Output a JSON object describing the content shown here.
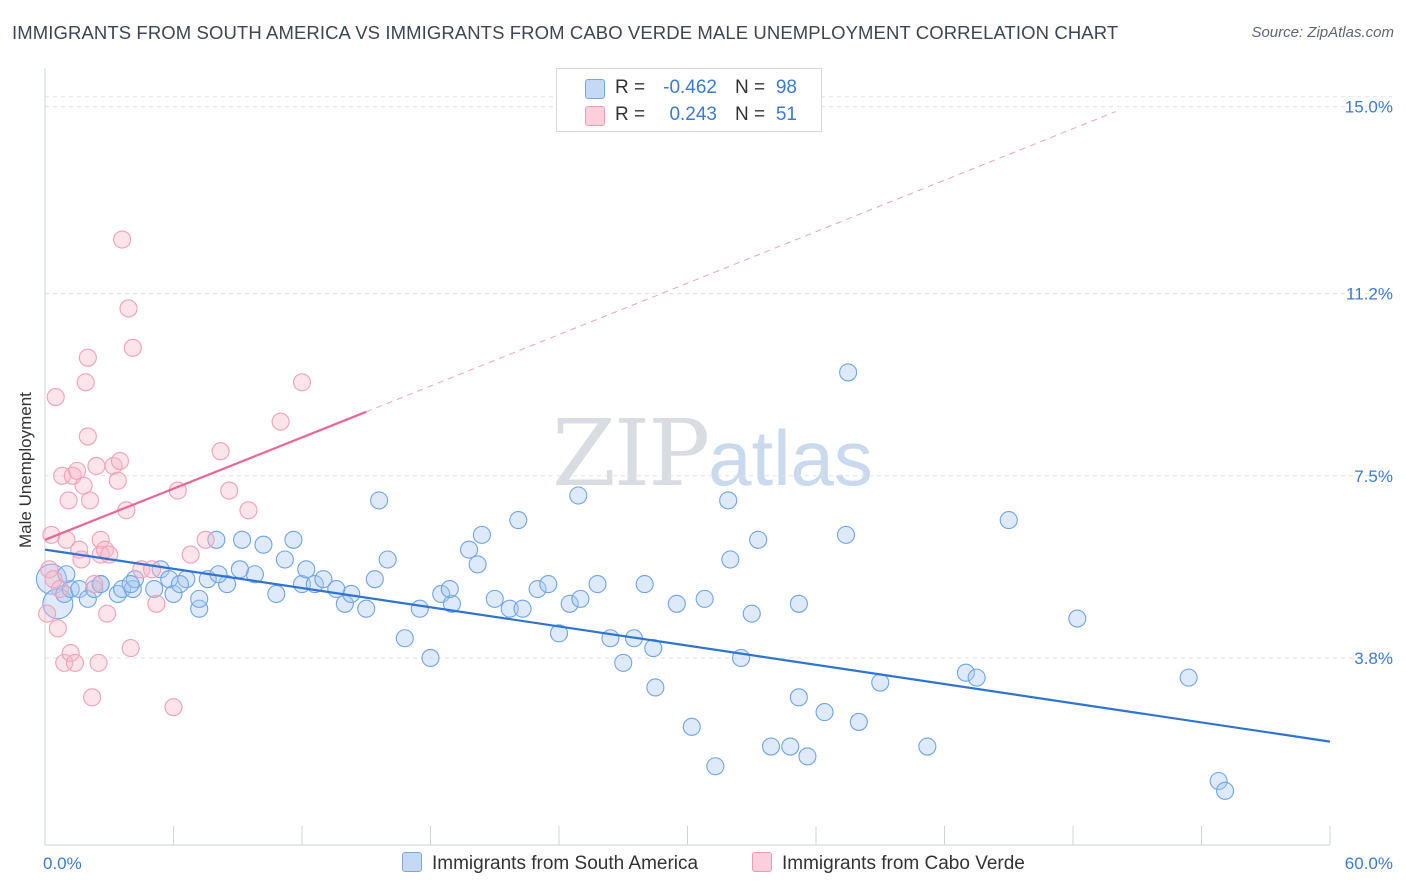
{
  "title": "IMMIGRANTS FROM SOUTH AMERICA VS IMMIGRANTS FROM CABO VERDE MALE UNEMPLOYMENT CORRELATION CHART",
  "source": "Source: ZipAtlas.com",
  "watermark": {
    "zip": "ZIP",
    "atlas": "atlas"
  },
  "legend": {
    "r_label": "R =",
    "n_label": "N =",
    "rows": [
      {
        "r": "-0.462",
        "n": "98",
        "color": "#a8c8f0"
      },
      {
        "r": "0.243",
        "n": "51",
        "color": "#f5b8c9"
      }
    ]
  },
  "chart_data": {
    "type": "scatter",
    "title": "IMMIGRANTS FROM SOUTH AMERICA VS IMMIGRANTS FROM CABO VERDE MALE UNEMPLOYMENT CORRELATION CHART",
    "xlabel": "",
    "ylabel": "Male Unemployment",
    "xlim": [
      0,
      60
    ],
    "ylim": [
      0,
      15.5
    ],
    "x_tick_labels": [
      "0.0%",
      "60.0%"
    ],
    "y_ticks": [
      3.8,
      7.5,
      11.2,
      15.0
    ],
    "y_tick_labels": [
      "3.8%",
      "7.5%",
      "11.2%",
      "15.0%"
    ],
    "grid": true,
    "legend_position": "top-center",
    "series": [
      {
        "name": "Immigrants from South America",
        "color": "#6fa4e8",
        "trend": {
          "x": [
            0,
            60
          ],
          "y": [
            6.0,
            2.1
          ],
          "dashed": false
        },
        "points": [
          [
            0.3,
            5.4
          ],
          [
            0.6,
            4.9
          ],
          [
            0.9,
            5.1
          ],
          [
            1.2,
            5.2
          ],
          [
            1.6,
            5.2
          ],
          [
            2.0,
            5.0
          ],
          [
            2.3,
            5.2
          ],
          [
            2.6,
            5.3
          ],
          [
            3.4,
            5.1
          ],
          [
            3.6,
            5.2
          ],
          [
            4.1,
            5.2
          ],
          [
            4.2,
            5.4
          ],
          [
            5.1,
            5.2
          ],
          [
            5.4,
            5.6
          ],
          [
            5.8,
            5.4
          ],
          [
            6.0,
            5.1
          ],
          [
            6.6,
            5.4
          ],
          [
            7.2,
            4.8
          ],
          [
            7.6,
            5.4
          ],
          [
            8.0,
            6.2
          ],
          [
            8.5,
            5.3
          ],
          [
            9.2,
            6.2
          ],
          [
            9.8,
            5.5
          ],
          [
            10.2,
            6.1
          ],
          [
            10.8,
            5.1
          ],
          [
            11.2,
            5.8
          ],
          [
            11.6,
            6.2
          ],
          [
            12.0,
            5.3
          ],
          [
            12.6,
            5.3
          ],
          [
            13.0,
            5.4
          ],
          [
            14.0,
            4.9
          ],
          [
            14.3,
            5.1
          ],
          [
            15.0,
            4.8
          ],
          [
            15.4,
            5.4
          ],
          [
            16.0,
            5.8
          ],
          [
            16.8,
            4.2
          ],
          [
            17.5,
            4.8
          ],
          [
            18.0,
            3.8
          ],
          [
            18.5,
            5.1
          ],
          [
            19.0,
            4.9
          ],
          [
            19.8,
            6.0
          ],
          [
            20.2,
            5.7
          ],
          [
            21.0,
            5.0
          ],
          [
            21.7,
            4.8
          ],
          [
            22.3,
            4.8
          ],
          [
            23.0,
            5.2
          ],
          [
            23.5,
            5.3
          ],
          [
            24.0,
            4.3
          ],
          [
            24.5,
            4.9
          ],
          [
            25.0,
            5.0
          ],
          [
            25.8,
            5.3
          ],
          [
            26.4,
            4.2
          ],
          [
            27.0,
            3.7
          ],
          [
            27.5,
            4.2
          ],
          [
            28.0,
            5.3
          ],
          [
            28.5,
            3.2
          ],
          [
            29.5,
            4.9
          ],
          [
            30.2,
            2.4
          ],
          [
            30.8,
            5.0
          ],
          [
            31.3,
            1.6
          ],
          [
            32.0,
            5.8
          ],
          [
            32.5,
            3.8
          ],
          [
            33.0,
            4.7
          ],
          [
            33.3,
            6.2
          ],
          [
            33.9,
            2.0
          ],
          [
            34.8,
            2.0
          ],
          [
            35.2,
            3.0
          ],
          [
            35.6,
            1.8
          ],
          [
            36.4,
            2.7
          ],
          [
            37.4,
            6.3
          ],
          [
            38.0,
            2.5
          ],
          [
            39.0,
            3.3
          ],
          [
            41.2,
            2.0
          ],
          [
            43.0,
            3.5
          ],
          [
            43.5,
            3.4
          ],
          [
            45.0,
            6.6
          ],
          [
            48.2,
            4.6
          ],
          [
            53.4,
            3.4
          ],
          [
            54.8,
            1.3
          ],
          [
            55.1,
            1.1
          ],
          [
            1.0,
            5.5
          ],
          [
            2.6,
            5.3
          ],
          [
            4.0,
            5.3
          ],
          [
            6.3,
            5.3
          ],
          [
            7.2,
            5.0
          ],
          [
            9.1,
            5.6
          ],
          [
            12.2,
            5.6
          ],
          [
            13.6,
            5.2
          ],
          [
            15.6,
            7.0
          ],
          [
            18.9,
            5.2
          ],
          [
            20.4,
            6.3
          ],
          [
            22.1,
            6.6
          ],
          [
            24.9,
            7.1
          ],
          [
            28.4,
            4.0
          ],
          [
            31.9,
            7.0
          ],
          [
            35.2,
            4.9
          ],
          [
            37.5,
            9.6
          ],
          [
            8.1,
            5.5
          ]
        ]
      },
      {
        "name": "Immigrants from Cabo Verde",
        "color": "#f2a0b8",
        "trend": {
          "x": [
            0,
            15
          ],
          "y": [
            6.2,
            8.8
          ],
          "dashed_extension": {
            "x": [
              15,
              50
            ],
            "y": [
              8.8,
              14.9
            ]
          }
        },
        "points": [
          [
            0.1,
            4.7
          ],
          [
            0.2,
            5.6
          ],
          [
            0.3,
            6.3
          ],
          [
            0.4,
            5.4
          ],
          [
            0.5,
            9.1
          ],
          [
            0.6,
            4.4
          ],
          [
            0.7,
            5.2
          ],
          [
            0.8,
            7.5
          ],
          [
            0.9,
            3.7
          ],
          [
            1.0,
            6.2
          ],
          [
            1.1,
            7.0
          ],
          [
            1.2,
            3.9
          ],
          [
            1.3,
            7.5
          ],
          [
            1.4,
            3.7
          ],
          [
            1.5,
            7.6
          ],
          [
            1.6,
            6.0
          ],
          [
            1.7,
            5.8
          ],
          [
            1.8,
            7.3
          ],
          [
            1.9,
            9.4
          ],
          [
            2.0,
            8.3
          ],
          [
            2.1,
            7.0
          ],
          [
            2.3,
            5.3
          ],
          [
            2.5,
            3.7
          ],
          [
            2.6,
            6.2
          ],
          [
            2.9,
            4.7
          ],
          [
            2.0,
            9.9
          ],
          [
            2.2,
            3.0
          ],
          [
            2.4,
            7.7
          ],
          [
            2.6,
            5.9
          ],
          [
            2.8,
            6.0
          ],
          [
            3.0,
            5.9
          ],
          [
            3.2,
            7.7
          ],
          [
            3.5,
            7.8
          ],
          [
            3.6,
            12.3
          ],
          [
            3.8,
            6.8
          ],
          [
            3.9,
            10.9
          ],
          [
            4.0,
            4.0
          ],
          [
            4.1,
            10.1
          ],
          [
            4.5,
            5.6
          ],
          [
            5.0,
            5.6
          ],
          [
            5.2,
            4.9
          ],
          [
            6.0,
            2.8
          ],
          [
            6.2,
            7.2
          ],
          [
            6.8,
            5.9
          ],
          [
            8.2,
            8.0
          ],
          [
            8.6,
            7.2
          ],
          [
            9.5,
            6.8
          ],
          [
            11.0,
            8.6
          ],
          [
            12.0,
            9.4
          ],
          [
            3.4,
            7.4
          ],
          [
            7.5,
            6.2
          ]
        ]
      }
    ]
  }
}
